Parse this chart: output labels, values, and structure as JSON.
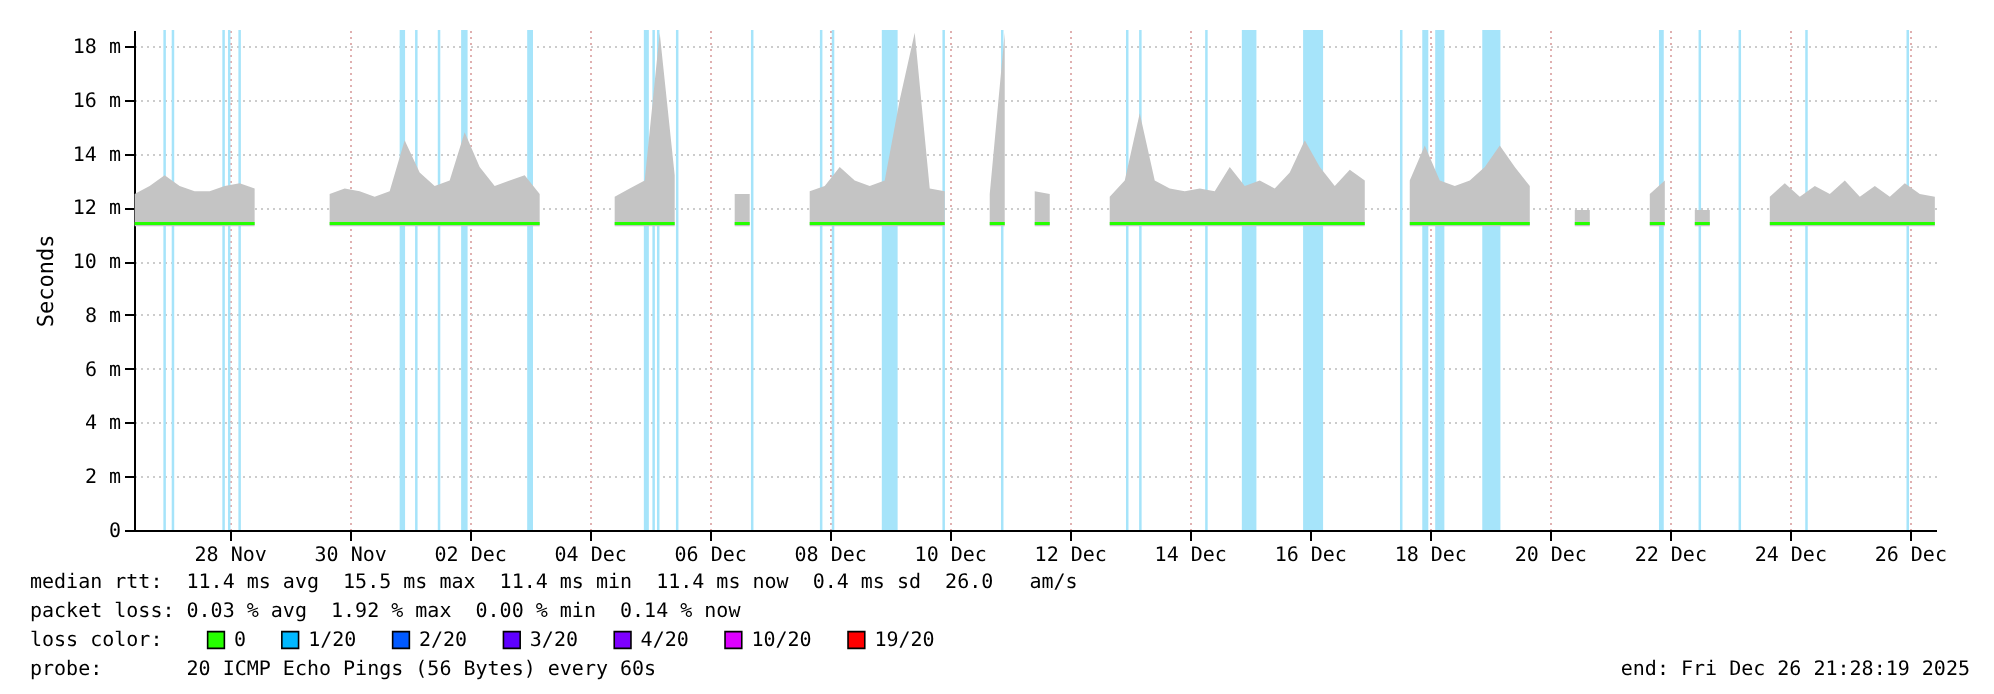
{
  "chart_data": {
    "type": "line",
    "ylabel": "Seconds",
    "legend_title": "loss color:",
    "legend": "bottom",
    "grid": true,
    "xlim": [
      "2025-11-26T20:45",
      "2025-12-26T21:28"
    ],
    "xticks": [
      {
        "value": "2025-11-28T11:00",
        "label": "28 Nov"
      },
      {
        "value": "2025-11-30T11:00",
        "label": "30 Nov"
      },
      {
        "value": "2025-12-02T11:00",
        "label": "02 Dec"
      },
      {
        "value": "2025-12-04T11:00",
        "label": "04 Dec"
      },
      {
        "value": "2025-12-06T11:00",
        "label": "06 Dec"
      },
      {
        "value": "2025-12-08T11:00",
        "label": "08 Dec"
      },
      {
        "value": "2025-12-10T11:00",
        "label": "10 Dec"
      },
      {
        "value": "2025-12-12T11:00",
        "label": "12 Dec"
      },
      {
        "value": "2025-12-14T11:00",
        "label": "14 Dec"
      },
      {
        "value": "2025-12-16T11:00",
        "label": "16 Dec"
      },
      {
        "value": "2025-12-18T11:00",
        "label": "18 Dec"
      },
      {
        "value": "2025-12-20T11:00",
        "label": "20 Dec"
      },
      {
        "value": "2025-12-22T11:00",
        "label": "22 Dec"
      },
      {
        "value": "2025-12-24T11:00",
        "label": "24 Dec"
      },
      {
        "value": "2025-12-26T11:00",
        "label": "26 Dec"
      }
    ],
    "ylim": [
      0,
      18.6
    ],
    "yticks": [
      0,
      {
        "value": 2,
        "label": "2 m"
      },
      {
        "value": 4,
        "label": "4 m"
      },
      {
        "value": 6,
        "label": "6 m"
      },
      {
        "value": 8,
        "label": "8 m"
      },
      {
        "value": 10,
        "label": "10 m"
      },
      {
        "value": 12,
        "label": "12 m"
      },
      {
        "value": 14,
        "label": "14 m"
      },
      {
        "value": 16,
        "label": "16 m"
      },
      {
        "value": 18,
        "label": "18 m"
      }
    ],
    "x": [
      "2025-11-26T21:00",
      "2025-11-27T03:00",
      "2025-11-27T09:00",
      "2025-11-27T15:00",
      "2025-11-27T21:00",
      "2025-11-28T03:00",
      "2025-11-28T09:00",
      "2025-11-28T15:00",
      "2025-11-28T21:00",
      "2025-11-29T03:00",
      "2025-11-29T09:00",
      "2025-11-29T15:00",
      "2025-11-29T21:00",
      "2025-11-30T03:00",
      "2025-11-30T09:00",
      "2025-11-30T15:00",
      "2025-11-30T21:00",
      "2025-12-01T03:00",
      "2025-12-01T09:00",
      "2025-12-01T15:00",
      "2025-12-01T21:00",
      "2025-12-02T03:00",
      "2025-12-02T09:00",
      "2025-12-02T15:00",
      "2025-12-02T21:00",
      "2025-12-03T03:00",
      "2025-12-03T09:00",
      "2025-12-03T15:00",
      "2025-12-03T21:00",
      "2025-12-04T03:00",
      "2025-12-04T09:00",
      "2025-12-04T15:00",
      "2025-12-04T21:00",
      "2025-12-05T03:00",
      "2025-12-05T09:00",
      "2025-12-05T15:00",
      "2025-12-05T21:00",
      "2025-12-06T03:00",
      "2025-12-06T09:00",
      "2025-12-06T15:00",
      "2025-12-06T21:00",
      "2025-12-07T03:00",
      "2025-12-07T09:00",
      "2025-12-07T15:00",
      "2025-12-07T21:00",
      "2025-12-08T03:00",
      "2025-12-08T09:00",
      "2025-12-08T15:00",
      "2025-12-08T21:00",
      "2025-12-09T03:00",
      "2025-12-09T09:00",
      "2025-12-09T15:00",
      "2025-12-09T21:00",
      "2025-12-10T03:00",
      "2025-12-10T09:00",
      "2025-12-10T15:00",
      "2025-12-10T21:00",
      "2025-12-11T03:00",
      "2025-12-11T09:00",
      "2025-12-11T15:00",
      "2025-12-11T21:00",
      "2025-12-12T03:00",
      "2025-12-12T09:00",
      "2025-12-12T15:00",
      "2025-12-12T21:00",
      "2025-12-13T03:00",
      "2025-12-13T09:00",
      "2025-12-13T15:00",
      "2025-12-13T21:00",
      "2025-12-14T03:00",
      "2025-12-14T09:00",
      "2025-12-14T15:00",
      "2025-12-14T21:00",
      "2025-12-15T03:00",
      "2025-12-15T09:00",
      "2025-12-15T15:00",
      "2025-12-15T21:00",
      "2025-12-16T03:00",
      "2025-12-16T09:00",
      "2025-12-16T15:00",
      "2025-12-16T21:00",
      "2025-12-17T03:00",
      "2025-12-17T09:00",
      "2025-12-17T15:00",
      "2025-12-17T21:00",
      "2025-12-18T03:00",
      "2025-12-18T09:00",
      "2025-12-18T15:00",
      "2025-12-18T21:00",
      "2025-12-19T03:00",
      "2025-12-19T09:00",
      "2025-12-19T15:00",
      "2025-12-19T21:00",
      "2025-12-20T03:00",
      "2025-12-20T09:00",
      "2025-12-20T15:00",
      "2025-12-20T21:00",
      "2025-12-21T03:00",
      "2025-12-21T09:00",
      "2025-12-21T15:00",
      "2025-12-21T21:00",
      "2025-12-22T03:00",
      "2025-12-22T09:00",
      "2025-12-22T15:00",
      "2025-12-22T21:00",
      "2025-12-23T03:00",
      "2025-12-23T09:00",
      "2025-12-23T15:00",
      "2025-12-23T21:00",
      "2025-12-24T03:00",
      "2025-12-24T09:00",
      "2025-12-24T15:00",
      "2025-12-24T21:00",
      "2025-12-25T03:00",
      "2025-12-25T09:00",
      "2025-12-25T15:00",
      "2025-12-25T21:00",
      "2025-12-26T03:00",
      "2025-12-26T09:00",
      "2025-12-26T15:00",
      "2025-12-26T21:00"
    ],
    "series": [
      {
        "name": "0",
        "color": "#26ff00",
        "values": [
          11.4,
          11.4,
          11.4,
          11.4,
          11.4,
          11.4,
          11.4,
          11.4,
          11.4,
          null,
          null,
          null,
          null,
          11.4,
          11.4,
          11.4,
          11.4,
          11.4,
          11.4,
          11.4,
          11.4,
          11.4,
          11.4,
          11.4,
          11.4,
          11.4,
          11.4,
          11.4,
          null,
          null,
          null,
          null,
          11.4,
          11.4,
          11.4,
          11.4,
          11.4,
          null,
          null,
          null,
          11.4,
          11.4,
          null,
          null,
          null,
          11.4,
          11.4,
          11.4,
          11.4,
          11.4,
          11.4,
          11.4,
          11.4,
          11.4,
          11.4,
          null,
          null,
          11.4,
          11.4,
          null,
          11.4,
          11.4,
          null,
          null,
          null,
          11.4,
          11.4,
          11.4,
          11.4,
          11.4,
          11.4,
          11.4,
          11.4,
          11.4,
          11.4,
          11.4,
          11.4,
          11.4,
          11.4,
          11.4,
          11.4,
          11.4,
          11.4,
          null,
          null,
          11.4,
          11.4,
          11.4,
          11.4,
          11.4,
          11.4,
          11.4,
          11.4,
          11.4,
          null,
          null,
          11.4,
          11.4,
          null,
          null,
          null,
          11.4,
          11.4,
          null,
          11.4,
          11.4,
          null,
          null,
          null,
          11.4,
          11.4,
          11.4,
          11.4,
          11.4,
          11.4,
          11.4,
          11.4,
          11.4,
          11.4,
          11.4,
          11.4
        ],
        "lower": [
          11.3,
          11.3,
          11.3,
          11.3,
          11.3,
          11.3,
          11.3,
          11.3,
          11.3,
          null,
          null,
          null,
          null,
          11.3,
          11.3,
          11.3,
          11.3,
          11.3,
          11.3,
          11.3,
          11.3,
          11.3,
          11.3,
          11.3,
          11.3,
          11.3,
          11.3,
          11.3,
          null,
          null,
          null,
          null,
          11.3,
          11.3,
          11.3,
          11.3,
          11.3,
          null,
          null,
          null,
          11.3,
          11.3,
          null,
          null,
          null,
          11.3,
          11.3,
          11.3,
          11.3,
          11.3,
          11.3,
          11.3,
          11.3,
          11.3,
          11.3,
          null,
          null,
          11.3,
          11.3,
          null,
          11.3,
          11.3,
          null,
          null,
          null,
          11.3,
          11.3,
          11.3,
          11.3,
          11.3,
          11.3,
          11.3,
          11.3,
          11.3,
          11.3,
          11.3,
          11.3,
          11.3,
          11.3,
          11.3,
          11.3,
          11.3,
          11.3,
          null,
          null,
          11.3,
          11.3,
          11.3,
          11.3,
          11.3,
          11.3,
          11.3,
          11.3,
          11.3,
          null,
          null,
          11.3,
          11.3,
          null,
          null,
          null,
          11.3,
          11.3,
          null,
          11.3,
          11.3,
          null,
          null,
          null,
          11.3,
          11.3,
          11.3,
          11.3,
          11.3,
          11.3,
          11.3,
          11.3,
          11.3,
          11.3,
          11.3,
          11.3
        ],
        "upper": [
          12.5,
          12.8,
          13.2,
          12.8,
          12.6,
          12.6,
          12.8,
          12.9,
          12.7,
          null,
          null,
          null,
          null,
          12.5,
          12.7,
          12.6,
          12.4,
          12.6,
          14.5,
          13.3,
          12.8,
          13.0,
          14.8,
          13.5,
          12.8,
          13.0,
          13.2,
          12.5,
          null,
          null,
          null,
          null,
          12.4,
          12.7,
          13.0,
          18.5,
          13.2,
          null,
          null,
          null,
          12.5,
          12.5,
          null,
          null,
          null,
          12.6,
          12.8,
          13.5,
          13.0,
          12.8,
          13.0,
          16.0,
          18.5,
          12.7,
          12.6,
          null,
          null,
          12.5,
          18.5,
          null,
          12.6,
          12.5,
          null,
          null,
          null,
          12.4,
          13.0,
          15.5,
          13.0,
          12.7,
          12.6,
          12.7,
          12.6,
          13.5,
          12.8,
          13.0,
          12.7,
          13.3,
          14.5,
          13.5,
          12.8,
          13.4,
          13.0,
          null,
          null,
          13.0,
          14.3,
          13.0,
          12.8,
          13.0,
          13.5,
          14.3,
          13.5,
          12.8,
          null,
          null,
          11.9,
          11.9,
          null,
          null,
          null,
          12.5,
          13.0,
          null,
          11.9,
          11.9,
          null,
          null,
          null,
          12.4,
          12.9,
          12.4,
          12.8,
          12.5,
          13.0,
          12.4,
          12.8,
          12.4,
          12.9,
          12.5,
          12.4
        ]
      },
      {
        "name": "1/20",
        "color": "#00b8ff",
        "values": [
          null,
          null,
          null,
          null,
          null,
          null,
          null,
          null,
          null,
          null,
          null,
          null,
          null,
          null,
          null,
          null,
          null,
          null,
          null,
          null,
          null,
          null,
          null,
          null,
          null,
          null,
          null,
          null,
          null,
          null,
          null,
          null,
          null,
          null,
          null,
          null,
          null,
          null,
          null,
          null,
          null,
          null,
          null,
          null,
          null,
          null,
          null,
          null,
          null,
          null,
          null,
          null,
          null,
          null,
          null,
          null,
          null,
          null,
          null,
          null,
          null,
          null,
          null,
          null,
          null,
          null,
          null,
          null,
          null,
          null,
          null,
          null,
          null,
          null,
          null,
          null,
          null,
          null,
          null,
          null,
          null,
          null,
          null,
          null,
          null,
          null,
          null,
          null,
          null,
          null,
          null,
          null,
          null,
          null,
          null,
          null,
          null,
          null,
          null,
          null,
          null,
          null,
          null,
          null,
          null,
          null,
          null,
          null,
          null,
          null,
          null,
          null,
          null,
          null,
          null,
          null,
          null,
          null,
          null,
          null,
          null
        ]
      },
      {
        "name": "2/20",
        "color": "#0059ff",
        "values": [
          null,
          null,
          null,
          null,
          null,
          null,
          null,
          null,
          null,
          null,
          null,
          null,
          null,
          null,
          null,
          null,
          null,
          null,
          null,
          null,
          null,
          null,
          null,
          null,
          null,
          null,
          null,
          null,
          null,
          null,
          null,
          null,
          null,
          null,
          null,
          null,
          null,
          null,
          null,
          null,
          null,
          null,
          null,
          null,
          null,
          null,
          null,
          null,
          null,
          null,
          null,
          null,
          null,
          null,
          null,
          null,
          null,
          null,
          null,
          null,
          null,
          null,
          null,
          null,
          null,
          null,
          null,
          null,
          null,
          null,
          null,
          null,
          null,
          null,
          null,
          null,
          null,
          null,
          null,
          null,
          null,
          null,
          null,
          null,
          null,
          null,
          null,
          null,
          null,
          null,
          null,
          null,
          null,
          null,
          null,
          null,
          null,
          null,
          null,
          null,
          null,
          null,
          null,
          null,
          null,
          null,
          null,
          null,
          null,
          null,
          null,
          null,
          null,
          null,
          null,
          null,
          null,
          null,
          null,
          null,
          null
        ]
      },
      {
        "name": "3/20",
        "color": "#5e00ff",
        "values": [
          null,
          null,
          null,
          null,
          null,
          null,
          null,
          null,
          null,
          null,
          null,
          null,
          null,
          null,
          null,
          null,
          null,
          null,
          null,
          null,
          null,
          null,
          null,
          null,
          null,
          null,
          null,
          null,
          null,
          null,
          null,
          null,
          null,
          null,
          null,
          null,
          null,
          null,
          null,
          null,
          null,
          null,
          null,
          null,
          null,
          null,
          null,
          null,
          null,
          null,
          null,
          null,
          null,
          null,
          null,
          null,
          null,
          null,
          null,
          null,
          null,
          null,
          null,
          null,
          null,
          null,
          null,
          null,
          null,
          null,
          null,
          null,
          null,
          null,
          null,
          null,
          null,
          null,
          null,
          null,
          null,
          null,
          null,
          null,
          null,
          null,
          null,
          null,
          null,
          null,
          null,
          null,
          null,
          null,
          null,
          null,
          null,
          null,
          null,
          null,
          null,
          null,
          null,
          null,
          null,
          null,
          null,
          null,
          null,
          null,
          null,
          null,
          null,
          null,
          null,
          null,
          null,
          null,
          null,
          null,
          null
        ]
      },
      {
        "name": "4/20",
        "color": "#7e00ff",
        "values": [
          null,
          null,
          null,
          null,
          null,
          null,
          null,
          null,
          null,
          null,
          null,
          null,
          null,
          null,
          null,
          null,
          null,
          null,
          null,
          null,
          null,
          null,
          null,
          null,
          null,
          null,
          null,
          null,
          null,
          null,
          null,
          null,
          null,
          null,
          null,
          null,
          null,
          null,
          null,
          null,
          null,
          null,
          null,
          null,
          null,
          null,
          null,
          null,
          null,
          null,
          null,
          null,
          null,
          null,
          null,
          null,
          null,
          null,
          null,
          null,
          null,
          null,
          null,
          null,
          null,
          null,
          null,
          null,
          null,
          null,
          null,
          null,
          null,
          null,
          null,
          null,
          null,
          null,
          null,
          null,
          null,
          null,
          null,
          null,
          null,
          null,
          null,
          null,
          null,
          null,
          null,
          null,
          null,
          null,
          null,
          null,
          null,
          null,
          null,
          null,
          null,
          null,
          null,
          null,
          null,
          null,
          null,
          null,
          null,
          null,
          null,
          null,
          null,
          null,
          null,
          null,
          null,
          null,
          null,
          null,
          null
        ]
      },
      {
        "name": "10/20",
        "color": "#dd00ff",
        "values": [
          null,
          null,
          null,
          null,
          null,
          null,
          null,
          null,
          null,
          null,
          null,
          null,
          null,
          null,
          null,
          null,
          null,
          null,
          null,
          null,
          null,
          null,
          null,
          null,
          null,
          null,
          null,
          null,
          null,
          null,
          null,
          null,
          null,
          null,
          null,
          null,
          null,
          null,
          null,
          null,
          null,
          null,
          null,
          null,
          null,
          null,
          null,
          null,
          null,
          null,
          null,
          null,
          null,
          null,
          null,
          null,
          null,
          null,
          null,
          null,
          null,
          null,
          null,
          null,
          null,
          null,
          null,
          null,
          null,
          null,
          null,
          null,
          null,
          null,
          null,
          null,
          null,
          null,
          null,
          null,
          null,
          null,
          null,
          null,
          null,
          null,
          null,
          null,
          null,
          null,
          null,
          null,
          null,
          null,
          null,
          null,
          null,
          null,
          null,
          null,
          null,
          null,
          null,
          null,
          null,
          null,
          null,
          null,
          null,
          null,
          null,
          null,
          null,
          null,
          null,
          null,
          null,
          null,
          null,
          null,
          null
        ]
      },
      {
        "name": "19/20",
        "color": "#ff0000",
        "values": [
          null,
          null,
          null,
          null,
          null,
          null,
          null,
          null,
          null,
          null,
          null,
          null,
          null,
          null,
          null,
          null,
          null,
          null,
          null,
          null,
          null,
          null,
          null,
          null,
          null,
          null,
          null,
          null,
          null,
          null,
          null,
          null,
          null,
          null,
          null,
          null,
          null,
          null,
          null,
          null,
          null,
          null,
          null,
          null,
          null,
          null,
          null,
          null,
          null,
          null,
          null,
          null,
          null,
          null,
          null,
          null,
          null,
          null,
          null,
          null,
          null,
          null,
          null,
          null,
          null,
          null,
          null,
          null,
          null,
          null,
          null,
          null,
          null,
          null,
          null,
          null,
          null,
          null,
          null,
          null,
          null,
          null,
          null,
          null,
          null,
          null,
          null,
          null,
          null,
          null,
          null,
          null,
          null,
          null,
          null,
          null,
          null,
          null,
          null,
          null,
          null,
          null,
          null,
          null,
          null,
          null,
          null,
          null,
          null,
          null,
          null,
          null,
          null,
          null,
          null,
          null,
          null,
          null,
          null,
          null,
          null
        ]
      }
    ],
    "bands": [
      {
        "axis": "x",
        "from": "2025-11-27T08:30",
        "to": "2025-11-27T09:30",
        "color": "#a6e4fa"
      },
      {
        "axis": "x",
        "from": "2025-11-27T11:50",
        "to": "2025-11-27T12:50",
        "color": "#a6e4fa"
      },
      {
        "axis": "x",
        "from": "2025-11-28T08:05",
        "to": "2025-11-28T09:05",
        "color": "#a6e4fa"
      },
      {
        "axis": "x",
        "from": "2025-11-28T10:20",
        "to": "2025-11-28T11:20",
        "color": "#a6e4fa"
      },
      {
        "axis": "x",
        "from": "2025-11-28T14:30",
        "to": "2025-11-28T15:30",
        "color": "#a6e4fa"
      },
      {
        "axis": "x",
        "from": "2025-12-01T07:00",
        "to": "2025-12-01T09:10",
        "color": "#a6e4fa"
      },
      {
        "axis": "x",
        "from": "2025-12-01T13:10",
        "to": "2025-12-01T14:10",
        "color": "#a6e4fa"
      },
      {
        "axis": "x",
        "from": "2025-12-01T22:15",
        "to": "2025-12-01T23:15",
        "color": "#a6e4fa"
      },
      {
        "axis": "x",
        "from": "2025-12-02T07:35",
        "to": "2025-12-02T10:10",
        "color": "#a6e4fa"
      },
      {
        "axis": "x",
        "from": "2025-12-03T10:00",
        "to": "2025-12-03T12:20",
        "color": "#a6e4fa"
      },
      {
        "axis": "x",
        "from": "2025-12-05T08:40",
        "to": "2025-12-05T10:40",
        "color": "#a6e4fa"
      },
      {
        "axis": "x",
        "from": "2025-12-05T12:05",
        "to": "2025-12-05T13:05",
        "color": "#a6e4fa"
      },
      {
        "axis": "x",
        "from": "2025-12-05T13:55",
        "to": "2025-12-05T14:55",
        "color": "#a6e4fa"
      },
      {
        "axis": "x",
        "from": "2025-12-05T21:30",
        "to": "2025-12-05T22:30",
        "color": "#a6e4fa"
      },
      {
        "axis": "x",
        "from": "2025-12-07T03:30",
        "to": "2025-12-07T04:30",
        "color": "#a6e4fa"
      },
      {
        "axis": "x",
        "from": "2025-12-08T07:05",
        "to": "2025-12-08T08:05",
        "color": "#a6e4fa"
      },
      {
        "axis": "x",
        "from": "2025-12-08T11:50",
        "to": "2025-12-08T12:50",
        "color": "#a6e4fa"
      },
      {
        "axis": "x",
        "from": "2025-12-09T07:50",
        "to": "2025-12-09T14:10",
        "color": "#a6e4fa"
      },
      {
        "axis": "x",
        "from": "2025-12-10T08:05",
        "to": "2025-12-10T09:05",
        "color": "#a6e4fa"
      },
      {
        "axis": "x",
        "from": "2025-12-11T07:30",
        "to": "2025-12-11T08:30",
        "color": "#a6e4fa"
      },
      {
        "axis": "x",
        "from": "2025-12-13T09:30",
        "to": "2025-12-13T10:30",
        "color": "#a6e4fa"
      },
      {
        "axis": "x",
        "from": "2025-12-13T14:45",
        "to": "2025-12-13T15:45",
        "color": "#a6e4fa"
      },
      {
        "axis": "x",
        "from": "2025-12-14T17:10",
        "to": "2025-12-14T18:10",
        "color": "#a6e4fa"
      },
      {
        "axis": "x",
        "from": "2025-12-15T07:50",
        "to": "2025-12-15T13:40",
        "color": "#a6e4fa"
      },
      {
        "axis": "x",
        "from": "2025-12-16T08:20",
        "to": "2025-12-16T16:20",
        "color": "#a6e4fa"
      },
      {
        "axis": "x",
        "from": "2025-12-17T23:05",
        "to": "2025-12-18T00:05",
        "color": "#a6e4fa"
      },
      {
        "axis": "x",
        "from": "2025-12-18T08:00",
        "to": "2025-12-18T10:25",
        "color": "#a6e4fa"
      },
      {
        "axis": "x",
        "from": "2025-12-18T13:10",
        "to": "2025-12-18T16:50",
        "color": "#a6e4fa"
      },
      {
        "axis": "x",
        "from": "2025-12-19T08:00",
        "to": "2025-12-19T15:15",
        "color": "#a6e4fa"
      },
      {
        "axis": "x",
        "from": "2025-12-22T06:40",
        "to": "2025-12-22T08:35",
        "color": "#a6e4fa"
      },
      {
        "axis": "x",
        "from": "2025-12-22T22:30",
        "to": "2025-12-22T23:30",
        "color": "#a6e4fa"
      },
      {
        "axis": "x",
        "from": "2025-12-23T14:30",
        "to": "2025-12-23T15:30",
        "color": "#a6e4fa"
      },
      {
        "axis": "x",
        "from": "2025-12-24T17:10",
        "to": "2025-12-24T18:10",
        "color": "#a6e4fa"
      },
      {
        "axis": "x",
        "from": "2025-12-26T09:40",
        "to": "2025-12-26T10:40",
        "color": "#a6e4fa"
      }
    ],
    "annotations": [
      "median rtt:  11.4 ms avg  15.5 ms max  11.4 ms min  11.4 ms now  0.4 ms sd  26.0   am/s",
      "packet loss: 0.03 % avg  1.92 % max  0.00 % min  0.14 % now",
      "probe:       20 ICMP Echo Pings (56 Bytes) every 60s",
      "end: Fri Dec 26 21:28:19 2025"
    ]
  }
}
